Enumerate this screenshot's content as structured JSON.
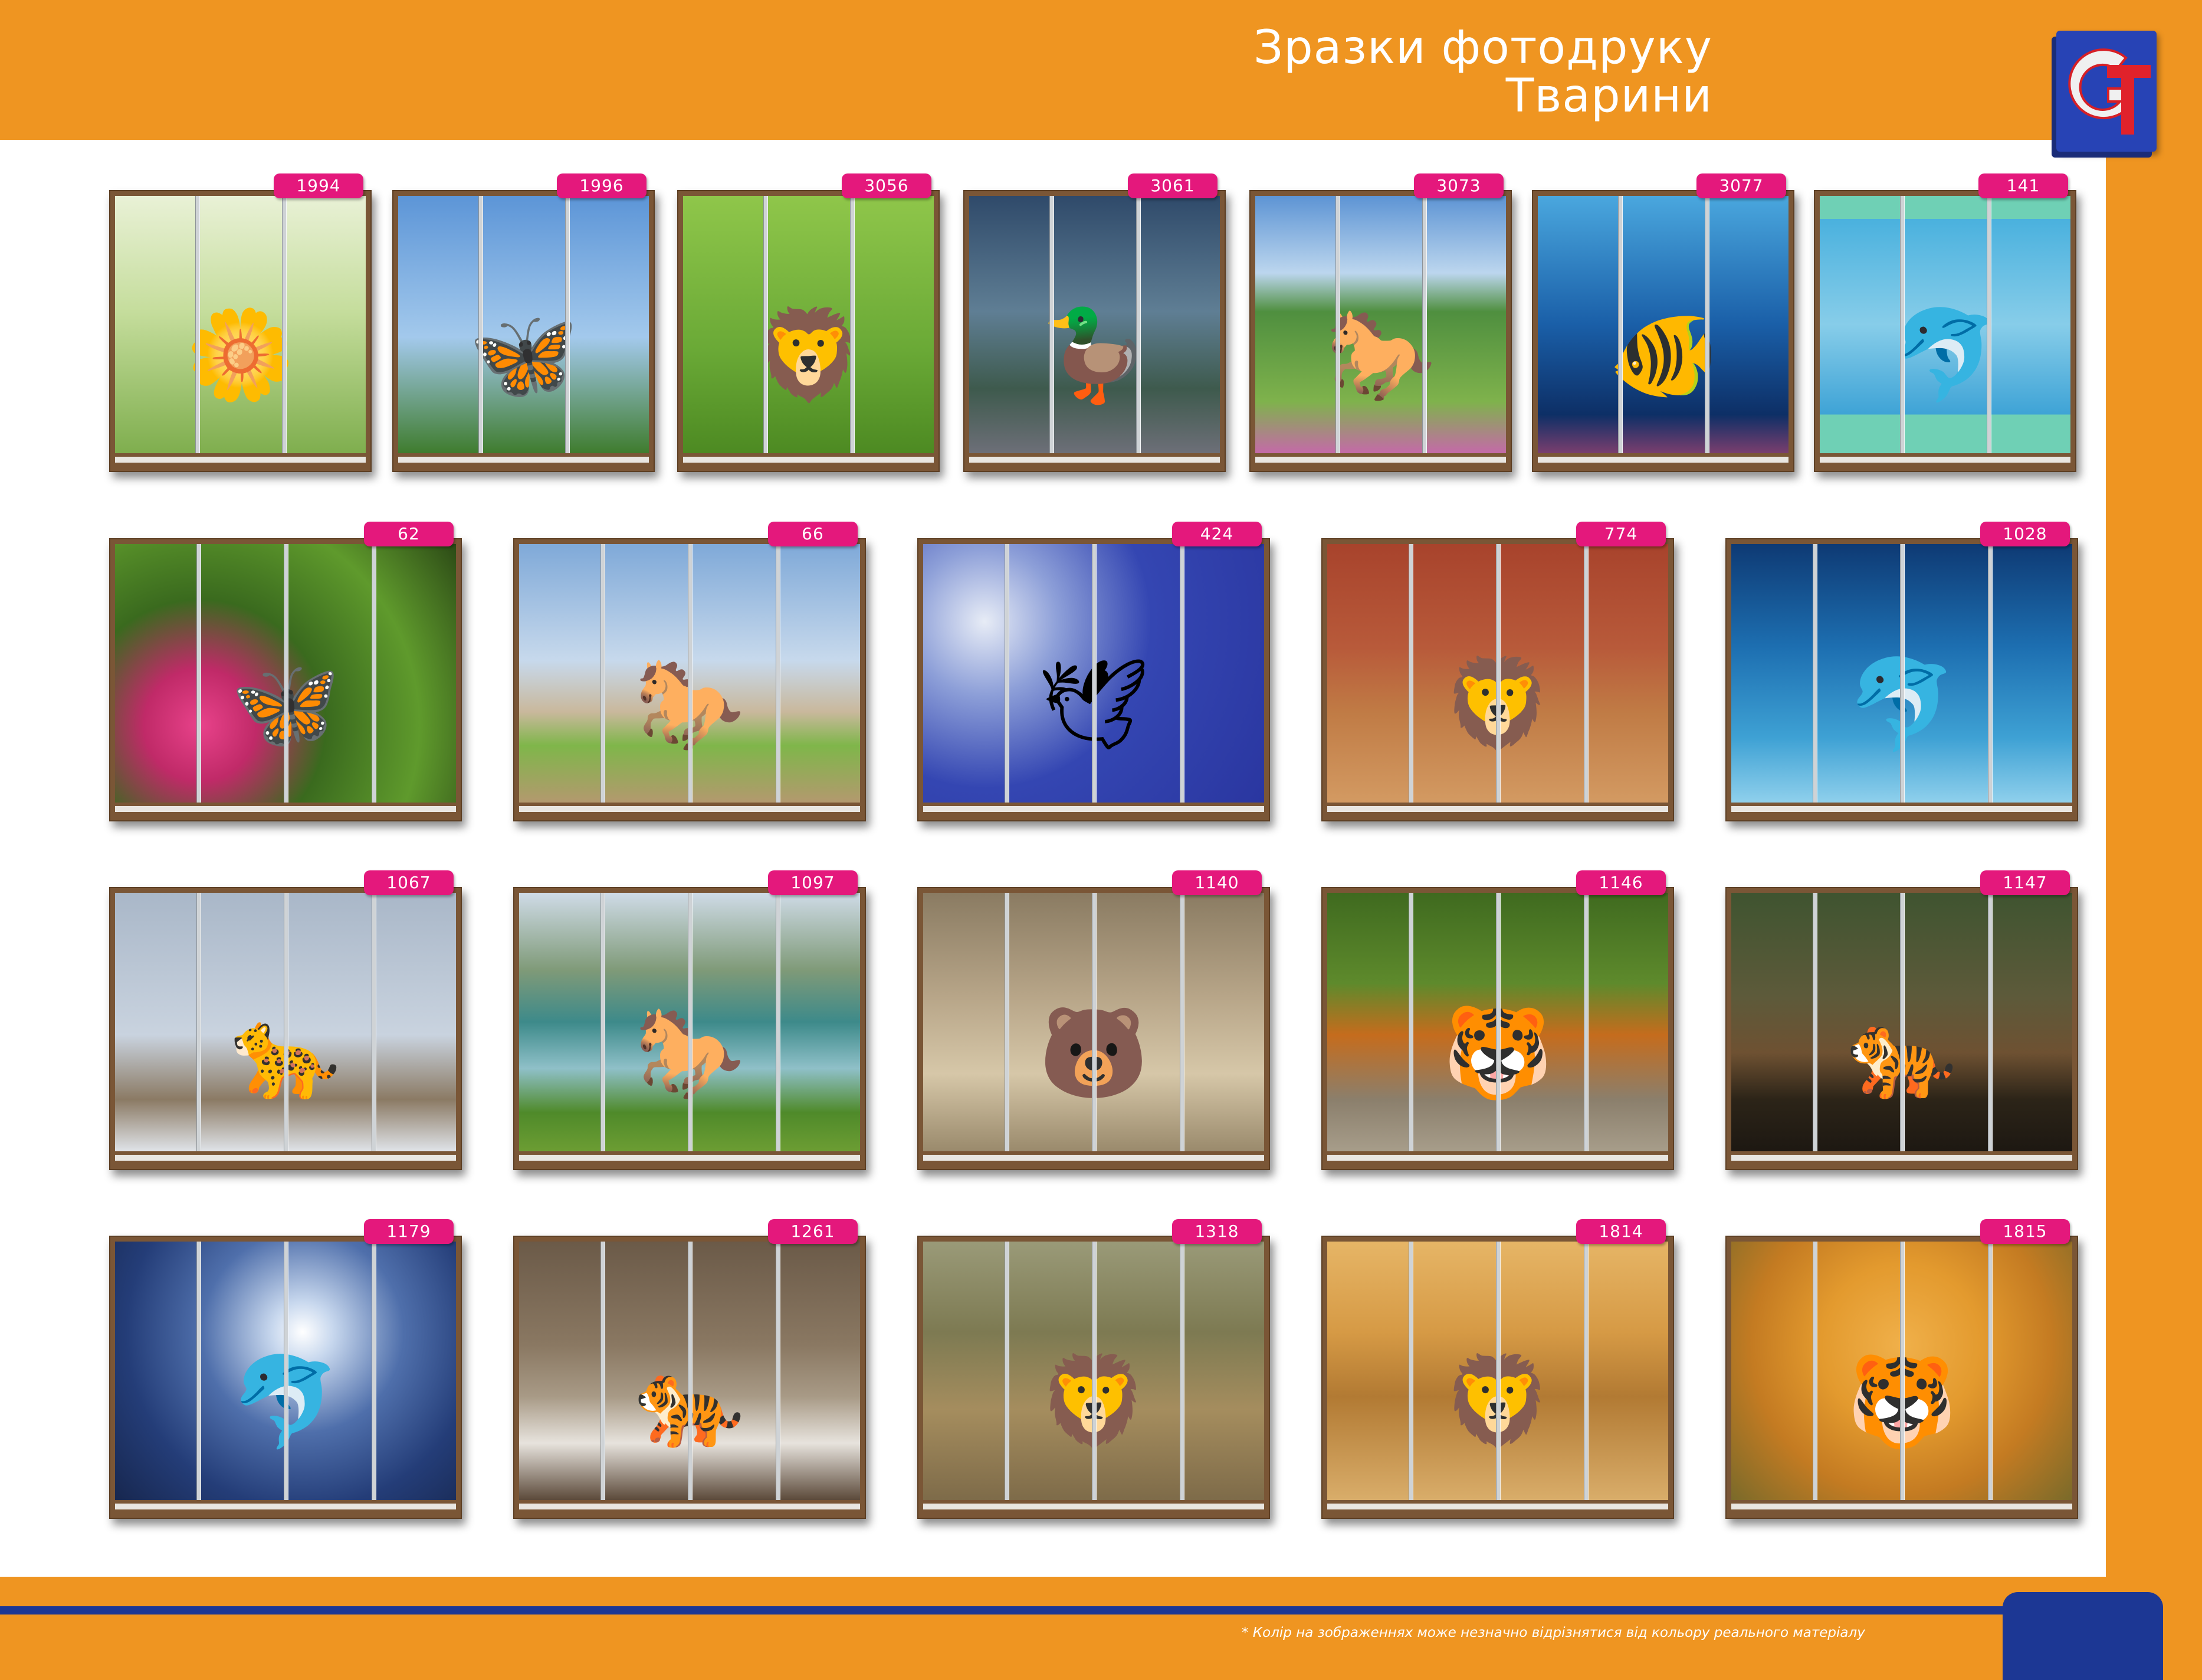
{
  "header": {
    "title_line1": "Зразки фотодруку",
    "title_line2": "Тварини"
  },
  "footer": {
    "note": "* Колір на зображеннях може незначно відрізнятися від кольору реального матеріалу"
  },
  "colors": {
    "accent_orange": "#ef9521",
    "accent_blue": "#1c3794",
    "badge_pink": "#e4187c"
  },
  "samples": [
    {
      "code": "1994",
      "subject_icon": "daisy-icon",
      "glyph": "🌼"
    },
    {
      "code": "1996",
      "subject_icon": "butterfly-icon",
      "glyph": "🦋"
    },
    {
      "code": "3056",
      "subject_icon": "lion-cub-icon",
      "glyph": "🦁"
    },
    {
      "code": "3061",
      "subject_icon": "goose-icon",
      "glyph": "🦆"
    },
    {
      "code": "3073",
      "subject_icon": "horse-icon",
      "glyph": "🐎"
    },
    {
      "code": "3077",
      "subject_icon": "fish-icon",
      "glyph": "🐠"
    },
    {
      "code": "141",
      "subject_icon": "dolphin-icon",
      "glyph": "🐬"
    },
    {
      "code": "62",
      "subject_icon": "butterfly-icon",
      "glyph": "🦋"
    },
    {
      "code": "66",
      "subject_icon": "horse-icon",
      "glyph": "🐎"
    },
    {
      "code": "424",
      "subject_icon": "dove-icon",
      "glyph": "🕊"
    },
    {
      "code": "774",
      "subject_icon": "lion-icon",
      "glyph": "🦁"
    },
    {
      "code": "1028",
      "subject_icon": "dolphin-icon",
      "glyph": "🐬"
    },
    {
      "code": "1067",
      "subject_icon": "cougar-icon",
      "glyph": "🐆"
    },
    {
      "code": "1097",
      "subject_icon": "horse-icon",
      "glyph": "🐎"
    },
    {
      "code": "1140",
      "subject_icon": "bear-icon",
      "glyph": "🐻"
    },
    {
      "code": "1146",
      "subject_icon": "tiger-icon",
      "glyph": "🐯"
    },
    {
      "code": "1147",
      "subject_icon": "tiger-icon",
      "glyph": "🐅"
    },
    {
      "code": "1179",
      "subject_icon": "dolphin-icon",
      "glyph": "🐬"
    },
    {
      "code": "1261",
      "subject_icon": "white-tiger-icon",
      "glyph": "🐅"
    },
    {
      "code": "1318",
      "subject_icon": "lion-cub-icon",
      "glyph": "🦁"
    },
    {
      "code": "1814",
      "subject_icon": "lion-icon",
      "glyph": "🦁"
    },
    {
      "code": "1815",
      "subject_icon": "tiger-icon",
      "glyph": "🐯"
    }
  ]
}
